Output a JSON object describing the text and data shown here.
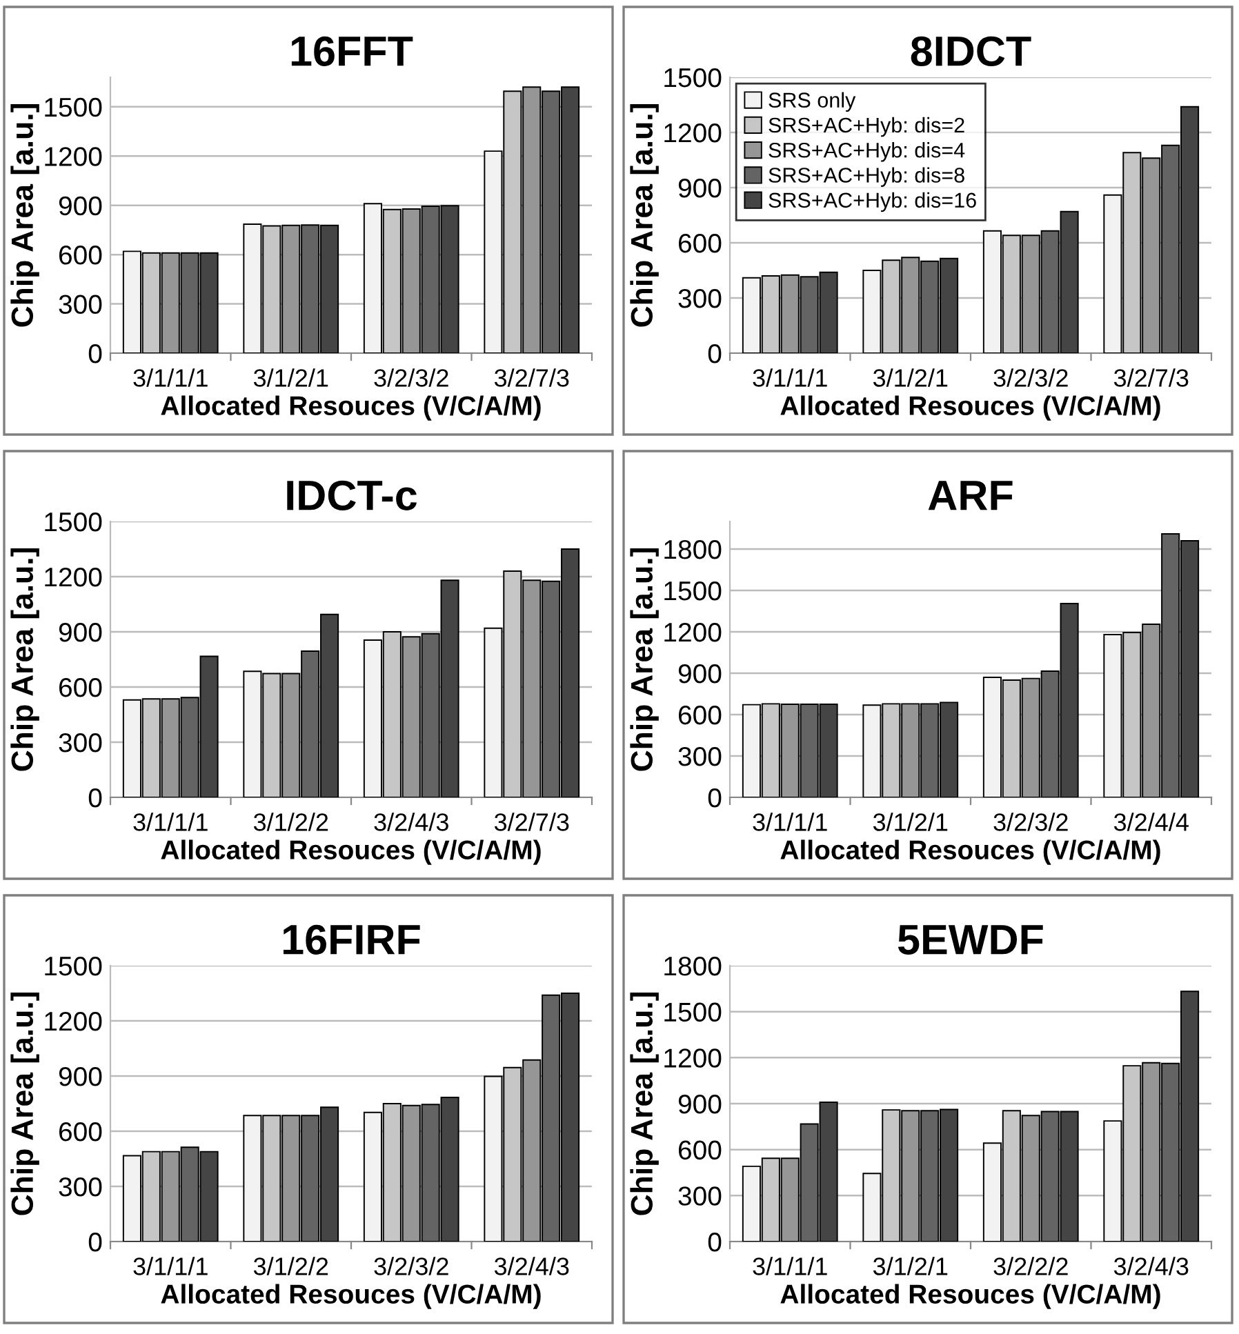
{
  "chart_data": [
    {
      "type": "bar",
      "title": "16FFT",
      "xlabel": "Allocated Resouces (V/C/A/M)",
      "ylabel": "Chip Area [a.u.]",
      "categories": [
        "3/1/1/1",
        "3/1/2/1",
        "3/2/3/2",
        "3/2/7/3"
      ],
      "ylim": [
        0,
        1680
      ],
      "yticks": [
        0,
        300,
        600,
        900,
        1200,
        1500
      ],
      "grid": "y",
      "series": [
        {
          "color": "#f2f2f2",
          "values": [
            620,
            785,
            910,
            1230
          ]
        },
        {
          "color": "#c6c6c6",
          "values": [
            610,
            775,
            875,
            1595
          ]
        },
        {
          "color": "#969696",
          "values": [
            610,
            778,
            878,
            1620
          ]
        },
        {
          "color": "#646464",
          "values": [
            610,
            780,
            895,
            1595
          ]
        },
        {
          "color": "#454545",
          "values": [
            610,
            778,
            898,
            1620
          ]
        }
      ]
    },
    {
      "type": "bar",
      "title": "8IDCT",
      "xlabel": "Allocated Resouces (V/C/A/M)",
      "ylabel": "Chip Area [a.u.]",
      "categories": [
        "3/1/1/1",
        "3/1/2/1",
        "3/2/3/2",
        "3/2/7/3"
      ],
      "ylim": [
        0,
        1500
      ],
      "yticks": [
        0,
        300,
        600,
        900,
        1200,
        1500
      ],
      "grid": "y",
      "legend": "top left",
      "series": [
        {
          "name": "SRS only",
          "color": "#f2f2f2",
          "values": [
            410,
            450,
            665,
            860
          ]
        },
        {
          "name": "SRS+AC+Hyb: dis=2",
          "color": "#c6c6c6",
          "values": [
            420,
            505,
            640,
            1090
          ]
        },
        {
          "name": "SRS+AC+Hyb: dis=4",
          "color": "#969696",
          "values": [
            425,
            520,
            640,
            1060
          ]
        },
        {
          "name": "SRS+AC+Hyb: dis=8",
          "color": "#646464",
          "values": [
            415,
            500,
            665,
            1130
          ]
        },
        {
          "name": "SRS+AC+Hyb: dis=16",
          "color": "#454545",
          "values": [
            440,
            515,
            770,
            1340
          ]
        }
      ]
    },
    {
      "type": "bar",
      "title": "IDCT-c",
      "xlabel": "Allocated Resouces (V/C/A/M)",
      "ylabel": "Chip Area [a.u.]",
      "categories": [
        "3/1/1/1",
        "3/1/2/2",
        "3/2/4/3",
        "3/2/7/3"
      ],
      "ylim": [
        0,
        1500
      ],
      "yticks": [
        0,
        300,
        600,
        900,
        1200,
        1500
      ],
      "grid": "y",
      "series": [
        {
          "color": "#f2f2f2",
          "values": [
            530,
            685,
            855,
            920
          ]
        },
        {
          "color": "#c6c6c6",
          "values": [
            535,
            673,
            900,
            1230
          ]
        },
        {
          "color": "#969696",
          "values": [
            535,
            673,
            873,
            1180
          ]
        },
        {
          "color": "#646464",
          "values": [
            543,
            795,
            890,
            1175
          ]
        },
        {
          "color": "#454545",
          "values": [
            767,
            995,
            1180,
            1350
          ]
        }
      ]
    },
    {
      "type": "bar",
      "title": "ARF",
      "xlabel": "Allocated Resouces (V/C/A/M)",
      "ylabel": "Chip Area [a.u.]",
      "categories": [
        "3/1/1/1",
        "3/1/2/1",
        "3/2/3/2",
        "3/2/4/4"
      ],
      "ylim": [
        0,
        2000
      ],
      "yticks": [
        0,
        300,
        600,
        900,
        1200,
        1500,
        1800
      ],
      "grid": "y",
      "series": [
        {
          "color": "#f2f2f2",
          "values": [
            672,
            669,
            870,
            1180
          ]
        },
        {
          "color": "#c6c6c6",
          "values": [
            678,
            678,
            850,
            1195
          ]
        },
        {
          "color": "#969696",
          "values": [
            675,
            678,
            862,
            1255
          ]
        },
        {
          "color": "#646464",
          "values": [
            675,
            678,
            915,
            1910
          ]
        },
        {
          "color": "#454545",
          "values": [
            675,
            688,
            1405,
            1860
          ]
        }
      ]
    },
    {
      "type": "bar",
      "title": "16FIRF",
      "xlabel": "Allocated Resouces (V/C/A/M)",
      "ylabel": "Chip Area [a.u.]",
      "categories": [
        "3/1/1/1",
        "3/1/2/2",
        "3/2/3/2",
        "3/2/4/3"
      ],
      "ylim": [
        0,
        1500
      ],
      "yticks": [
        0,
        300,
        600,
        900,
        1200,
        1500
      ],
      "grid": "y",
      "series": [
        {
          "color": "#f2f2f2",
          "values": [
            467,
            685,
            702,
            898
          ]
        },
        {
          "color": "#c6c6c6",
          "values": [
            489,
            685,
            750,
            946
          ]
        },
        {
          "color": "#969696",
          "values": [
            489,
            685,
            740,
            987
          ]
        },
        {
          "color": "#646464",
          "values": [
            513,
            685,
            745,
            1340
          ]
        },
        {
          "color": "#454545",
          "values": [
            489,
            730,
            784,
            1350
          ]
        }
      ]
    },
    {
      "type": "bar",
      "title": "5EWDF",
      "xlabel": "Allocated Resouces (V/C/A/M)",
      "ylabel": "Chip Area [a.u.]",
      "categories": [
        "3/1/1/1",
        "3/1/2/1",
        "3/2/2/2",
        "3/2/4/3"
      ],
      "ylim": [
        0,
        1800
      ],
      "yticks": [
        0,
        300,
        600,
        900,
        1200,
        1500,
        1800
      ],
      "grid": "y",
      "series": [
        {
          "color": "#f2f2f2",
          "values": [
            491,
            444,
            642,
            787
          ]
        },
        {
          "color": "#c6c6c6",
          "values": [
            543,
            859,
            854,
            1147
          ]
        },
        {
          "color": "#969696",
          "values": [
            543,
            854,
            822,
            1167
          ]
        },
        {
          "color": "#646464",
          "values": [
            767,
            854,
            848,
            1162
          ]
        },
        {
          "color": "#454545",
          "values": [
            909,
            862,
            848,
            1632
          ]
        }
      ]
    }
  ]
}
